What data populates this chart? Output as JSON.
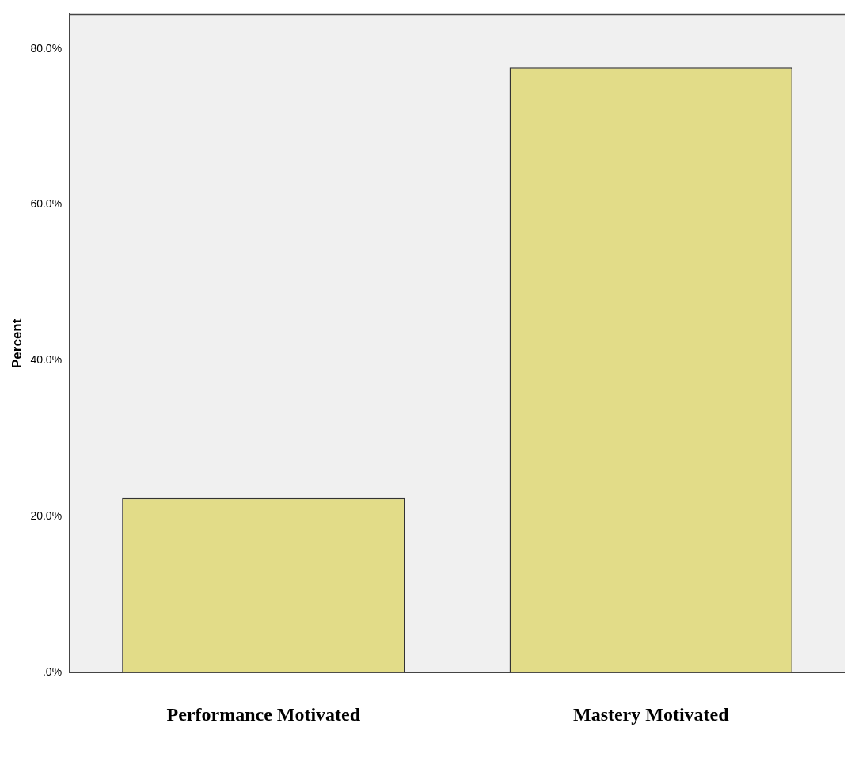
{
  "chart_data": {
    "type": "bar",
    "ylabel": "Percent",
    "categories": [
      "Performance Motivated",
      "Mastery Motivated"
    ],
    "values": [
      22.4,
      77.6
    ],
    "color": "#e2dc88",
    "ylim": [
      0,
      84.4
    ],
    "yticks": [
      {
        "value": 0,
        "label": ".0%"
      },
      {
        "value": 20,
        "label": "20.0%"
      },
      {
        "value": 40,
        "label": "40.0%"
      },
      {
        "value": 60,
        "label": "60.0%"
      },
      {
        "value": 80,
        "label": "80.0%"
      }
    ],
    "grid": false
  }
}
